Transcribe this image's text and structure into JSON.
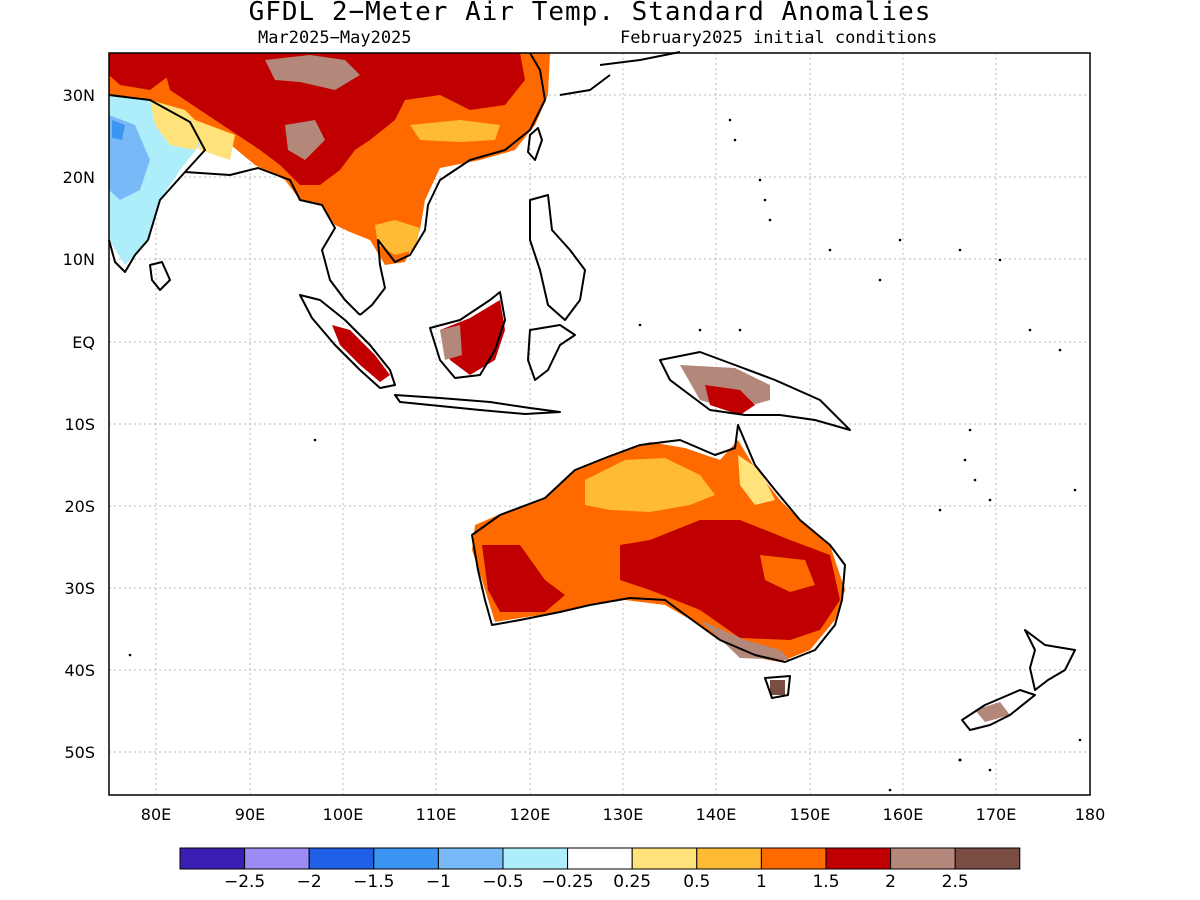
{
  "title": "GFDL 2−Meter Air Temp. Standard Anomalies",
  "period": "Mar2025−May2025",
  "init": "February2025 initial conditions",
  "lat_labels": [
    "30N",
    "20N",
    "10N",
    "EQ",
    "10S",
    "20S",
    "30S",
    "40S",
    "50S"
  ],
  "lon_labels": [
    "80E",
    "90E",
    "100E",
    "110E",
    "120E",
    "130E",
    "140E",
    "150E",
    "160E",
    "170E",
    "180"
  ],
  "colorbar": {
    "colors": [
      "#3a1eb4",
      "#9b8cf5",
      "#1f60e6",
      "#3c95f2",
      "#78b9f8",
      "#aeeefb",
      "#ffffff",
      "#ffe37a",
      "#ffbb35",
      "#ff6a00",
      "#c00000",
      "#b3877a",
      "#7a4d42"
    ],
    "labels": [
      "−2.5",
      "−2",
      "−1.5",
      "−1",
      "−0.5",
      "−0.25",
      "0.25",
      "0.5",
      "1",
      "1.5",
      "2",
      "2.5"
    ]
  }
}
